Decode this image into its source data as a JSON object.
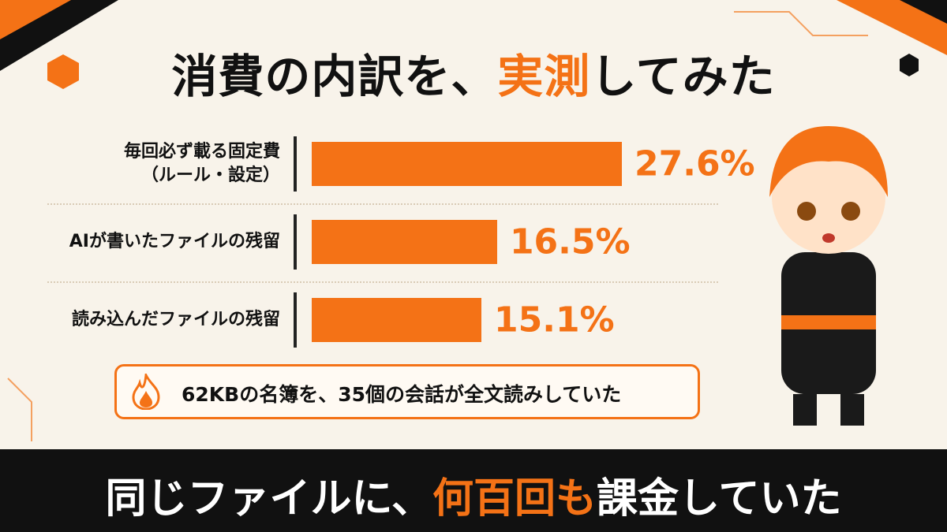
{
  "chart_data": {
    "type": "bar",
    "orientation": "horizontal",
    "title": {
      "before": "消費の内訳を、",
      "highlight": "実測",
      "after": "してみた"
    },
    "categories": [
      "毎回必ず載る固定費\n（ルール・設定）",
      "AIが書いたファイルの残留",
      "読み込んだファイルの残留"
    ],
    "values": [
      27.6,
      16.5,
      15.1
    ],
    "value_labels": [
      "27.6%",
      "16.5%",
      "15.1%"
    ],
    "color": "#f47216",
    "note": "62KBの名簿を、35個の会話が全文読みしていた",
    "footer": {
      "before": "同じファイルに、",
      "highlight": "何百回も",
      "after": "課金していた"
    }
  }
}
